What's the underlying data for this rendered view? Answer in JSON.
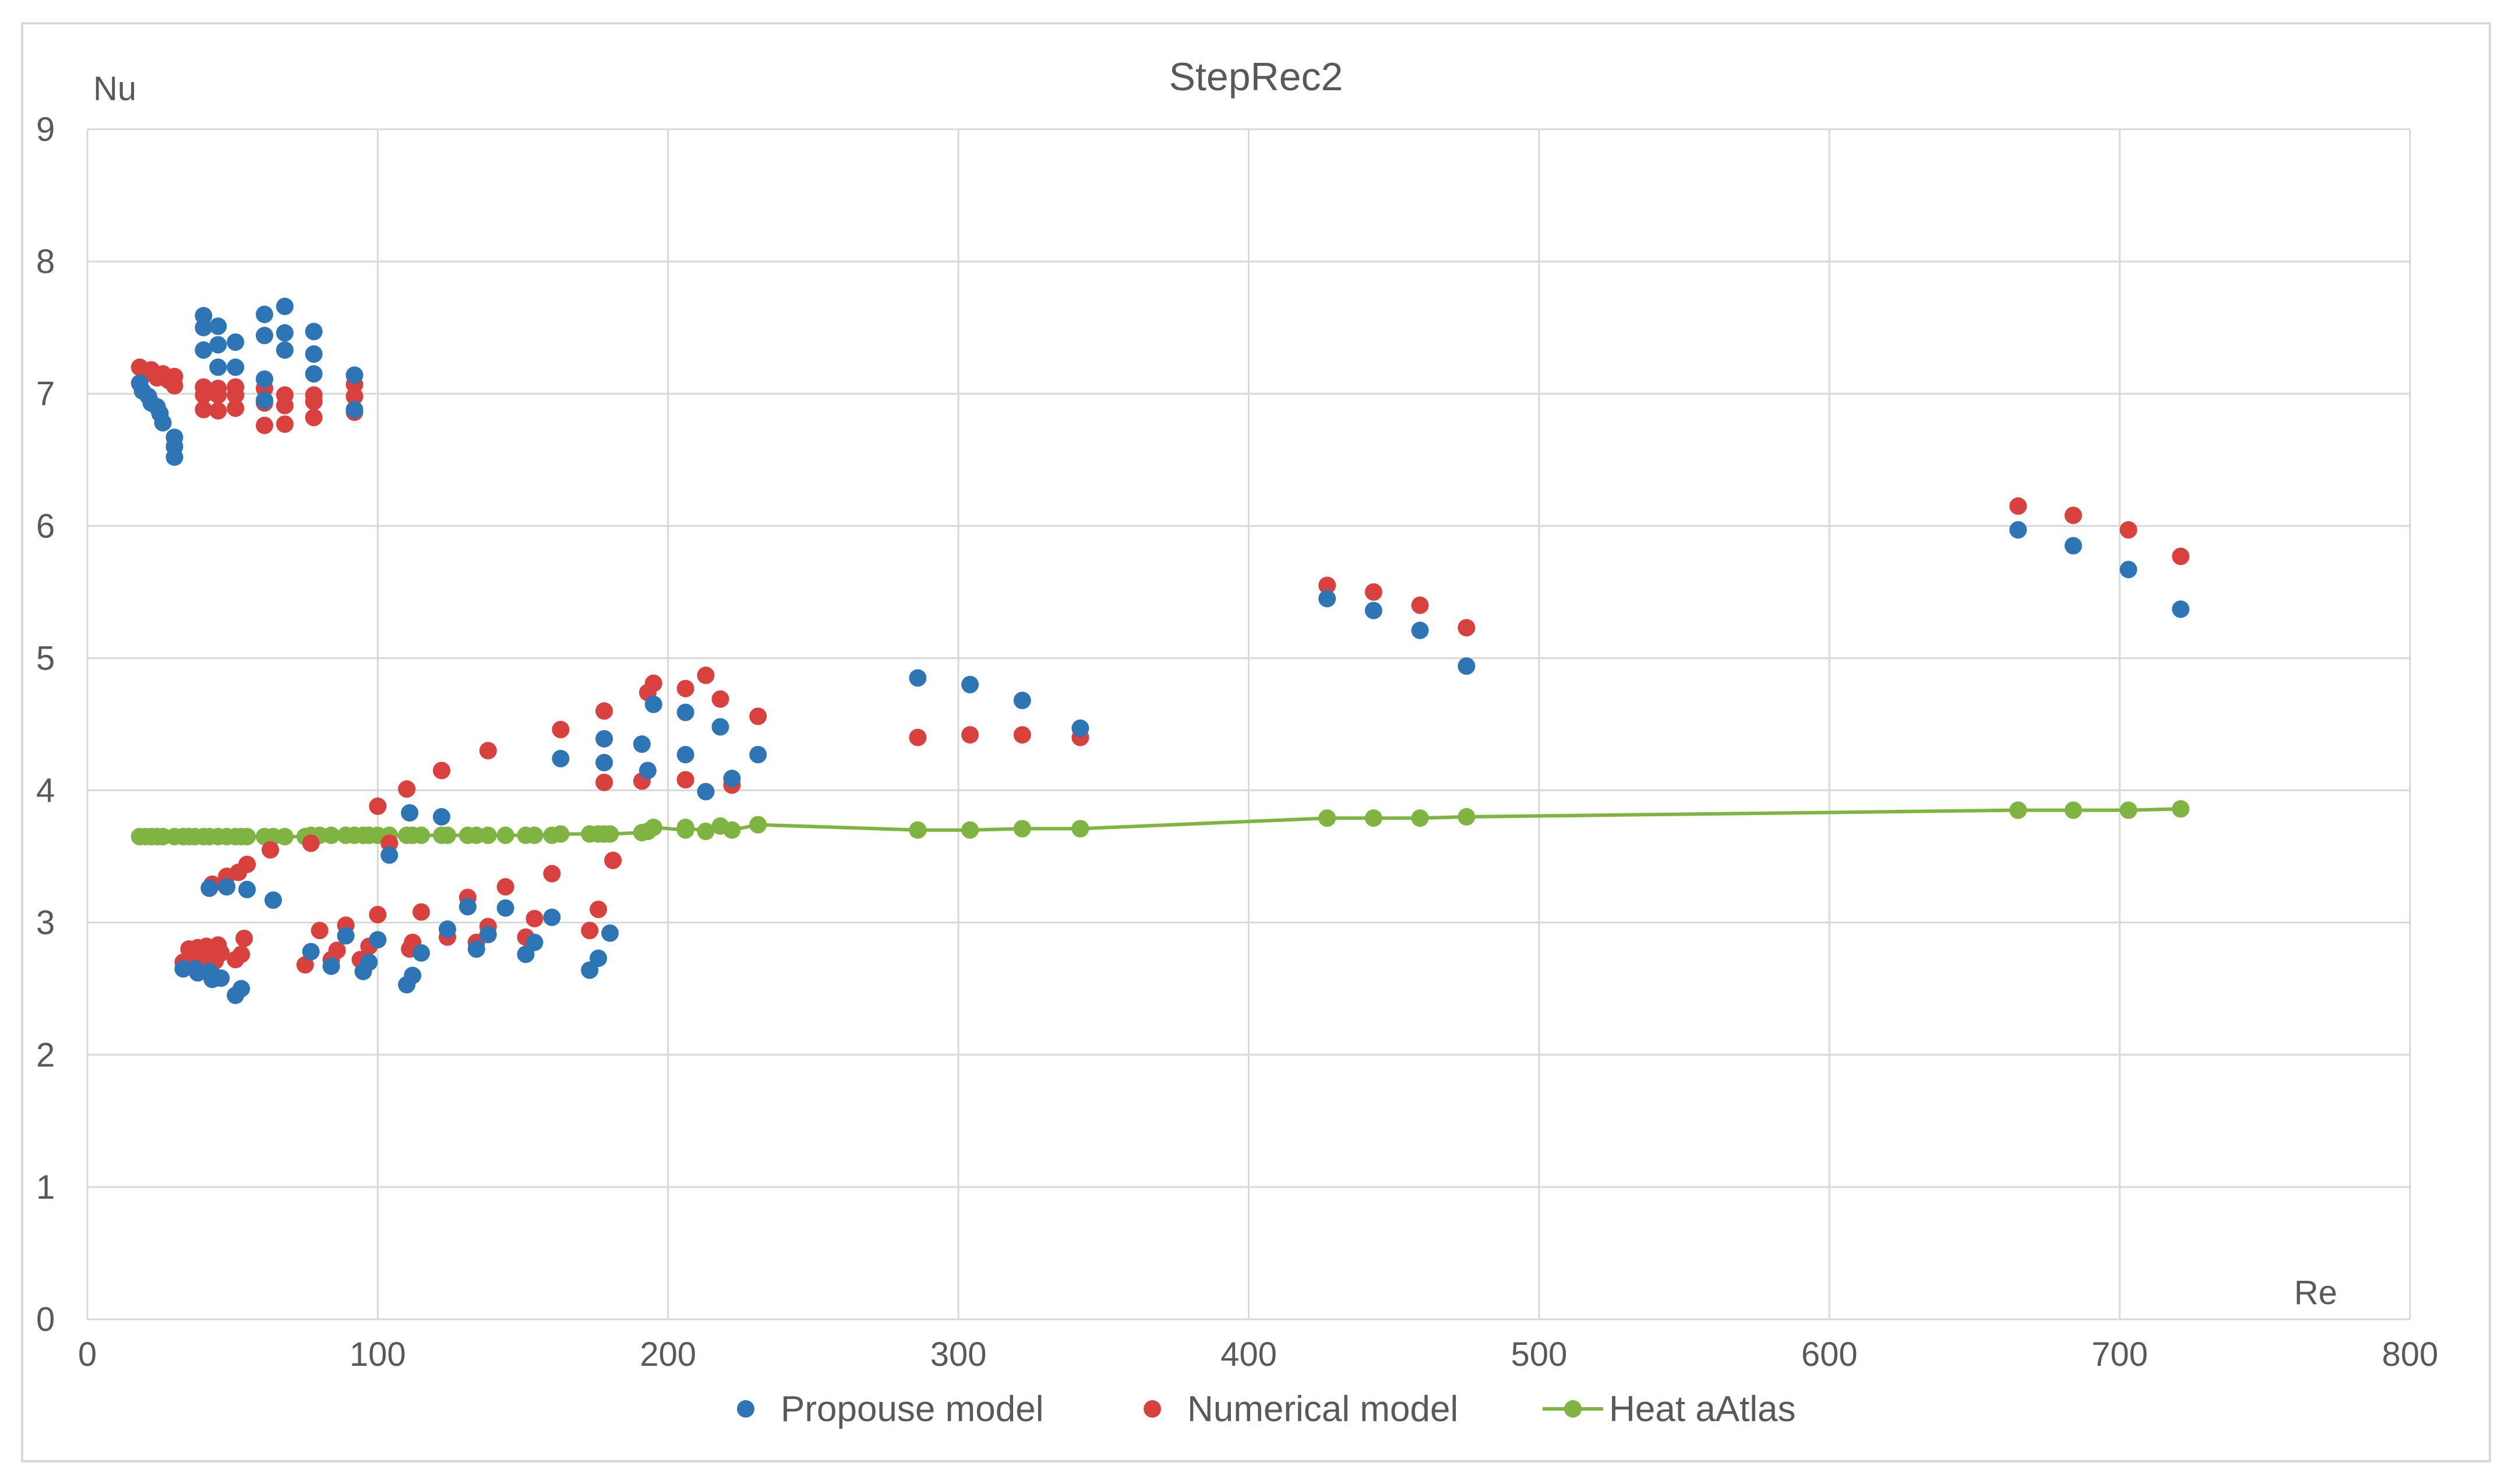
{
  "chart_data": {
    "type": "scatter",
    "title": "StepRec2",
    "xlabel": "Re",
    "ylabel": "Nu",
    "xlim": [
      0,
      800
    ],
    "ylim": [
      0,
      9
    ],
    "x_ticks": [
      0,
      100,
      200,
      300,
      400,
      500,
      600,
      700,
      800
    ],
    "y_ticks": [
      0,
      1,
      2,
      3,
      4,
      5,
      6,
      7,
      8,
      9
    ],
    "grid": true,
    "legend": "bottom",
    "colors": {
      "propouse": "#2e75b6",
      "numerical": "#d9413f",
      "heat": "#7fb342",
      "grid": "#d9d9d9",
      "border": "#d9d9d9"
    },
    "series": [
      {
        "name": "Propouse model",
        "kind": "markers",
        "points": [
          [
            18,
            7.08
          ],
          [
            19,
            7.02
          ],
          [
            21,
            6.98
          ],
          [
            22,
            6.93
          ],
          [
            24,
            6.9
          ],
          [
            25,
            6.85
          ],
          [
            26,
            6.78
          ],
          [
            30,
            6.67
          ],
          [
            30,
            6.6
          ],
          [
            30,
            6.52
          ],
          [
            40,
            7.59
          ],
          [
            40,
            7.5
          ],
          [
            40,
            7.33
          ],
          [
            45,
            7.51
          ],
          [
            45,
            7.37
          ],
          [
            45,
            7.2
          ],
          [
            51,
            7.39
          ],
          [
            51,
            7.2
          ],
          [
            61,
            7.6
          ],
          [
            61,
            7.44
          ],
          [
            61,
            7.11
          ],
          [
            61,
            6.95
          ],
          [
            68,
            7.66
          ],
          [
            68,
            7.46
          ],
          [
            68,
            7.33
          ],
          [
            78,
            7.47
          ],
          [
            78,
            7.3
          ],
          [
            78,
            7.15
          ],
          [
            92,
            7.14
          ],
          [
            92,
            6.88
          ],
          [
            33,
            2.65
          ],
          [
            37,
            2.65
          ],
          [
            38,
            2.62
          ],
          [
            42,
            2.63
          ],
          [
            43,
            2.57
          ],
          [
            44,
            2.59
          ],
          [
            46,
            2.58
          ],
          [
            51,
            2.45
          ],
          [
            53,
            2.5
          ],
          [
            42,
            3.26
          ],
          [
            48,
            3.27
          ],
          [
            55,
            3.25
          ],
          [
            64,
            3.17
          ],
          [
            77,
            2.78
          ],
          [
            84,
            2.67
          ],
          [
            89,
            2.9
          ],
          [
            95,
            2.63
          ],
          [
            97,
            2.7
          ],
          [
            100,
            2.87
          ],
          [
            104,
            3.51
          ],
          [
            110,
            2.53
          ],
          [
            111,
            3.83
          ],
          [
            112,
            2.6
          ],
          [
            115,
            2.77
          ],
          [
            122,
            3.8
          ],
          [
            124,
            2.95
          ],
          [
            131,
            3.12
          ],
          [
            134,
            2.8
          ],
          [
            138,
            2.91
          ],
          [
            144,
            3.11
          ],
          [
            151,
            2.76
          ],
          [
            154,
            2.85
          ],
          [
            160,
            3.04
          ],
          [
            173,
            2.64
          ],
          [
            176,
            2.73
          ],
          [
            180,
            2.92
          ],
          [
            163,
            4.24
          ],
          [
            178,
            4.39
          ],
          [
            178,
            4.21
          ],
          [
            191,
            4.35
          ],
          [
            193,
            4.15
          ],
          [
            195,
            4.65
          ],
          [
            206,
            4.59
          ],
          [
            206,
            4.27
          ],
          [
            213,
            3.99
          ],
          [
            218,
            4.48
          ],
          [
            222,
            4.09
          ],
          [
            231,
            4.27
          ],
          [
            286,
            4.85
          ],
          [
            304,
            4.8
          ],
          [
            322,
            4.68
          ],
          [
            342,
            4.47
          ],
          [
            427,
            5.45
          ],
          [
            443,
            5.36
          ],
          [
            459,
            5.21
          ],
          [
            475,
            4.94
          ],
          [
            665,
            5.97
          ],
          [
            684,
            5.85
          ],
          [
            703,
            5.67
          ],
          [
            721,
            5.37
          ]
        ]
      },
      {
        "name": "Numerical model",
        "kind": "markers",
        "points": [
          [
            18,
            7.2
          ],
          [
            20,
            7.15
          ],
          [
            22,
            7.18
          ],
          [
            24,
            7.12
          ],
          [
            26,
            7.15
          ],
          [
            28,
            7.1
          ],
          [
            30,
            7.13
          ],
          [
            30,
            7.06
          ],
          [
            40,
            7.05
          ],
          [
            40,
            6.99
          ],
          [
            40,
            6.88
          ],
          [
            45,
            7.04
          ],
          [
            45,
            6.99
          ],
          [
            45,
            6.87
          ],
          [
            51,
            7.05
          ],
          [
            51,
            6.99
          ],
          [
            51,
            6.89
          ],
          [
            61,
            7.04
          ],
          [
            61,
            6.93
          ],
          [
            61,
            6.76
          ],
          [
            68,
            6.99
          ],
          [
            68,
            6.91
          ],
          [
            68,
            6.77
          ],
          [
            78,
            6.99
          ],
          [
            78,
            6.94
          ],
          [
            78,
            6.82
          ],
          [
            92,
            7.07
          ],
          [
            92,
            6.98
          ],
          [
            92,
            6.86
          ],
          [
            33,
            2.7
          ],
          [
            35,
            2.73
          ],
          [
            35,
            2.8
          ],
          [
            37,
            2.74
          ],
          [
            38,
            2.81
          ],
          [
            40,
            2.72
          ],
          [
            41,
            2.82
          ],
          [
            43,
            3.29
          ],
          [
            44,
            2.71
          ],
          [
            45,
            2.83
          ],
          [
            46,
            2.77
          ],
          [
            48,
            3.35
          ],
          [
            51,
            2.72
          ],
          [
            52,
            3.38
          ],
          [
            53,
            2.76
          ],
          [
            54,
            2.88
          ],
          [
            55,
            3.44
          ],
          [
            63,
            3.55
          ],
          [
            75,
            2.68
          ],
          [
            77,
            3.6
          ],
          [
            80,
            2.94
          ],
          [
            84,
            2.72
          ],
          [
            86,
            2.79
          ],
          [
            89,
            2.98
          ],
          [
            94,
            2.72
          ],
          [
            97,
            2.82
          ],
          [
            100,
            3.06
          ],
          [
            100,
            3.88
          ],
          [
            104,
            3.6
          ],
          [
            111,
            2.8
          ],
          [
            112,
            2.85
          ],
          [
            115,
            3.08
          ],
          [
            122,
            4.15
          ],
          [
            110,
            4.01
          ],
          [
            124,
            2.89
          ],
          [
            131,
            3.19
          ],
          [
            134,
            2.85
          ],
          [
            138,
            2.97
          ],
          [
            138,
            4.3
          ],
          [
            144,
            3.27
          ],
          [
            151,
            2.89
          ],
          [
            154,
            3.03
          ],
          [
            160,
            3.37
          ],
          [
            163,
            4.46
          ],
          [
            173,
            2.94
          ],
          [
            176,
            3.1
          ],
          [
            178,
            4.6
          ],
          [
            178,
            4.06
          ],
          [
            181,
            3.47
          ],
          [
            191,
            4.07
          ],
          [
            193,
            4.74
          ],
          [
            195,
            4.81
          ],
          [
            206,
            4.77
          ],
          [
            206,
            4.08
          ],
          [
            213,
            4.87
          ],
          [
            218,
            4.69
          ],
          [
            222,
            4.04
          ],
          [
            231,
            4.56
          ],
          [
            286,
            4.4
          ],
          [
            304,
            4.42
          ],
          [
            322,
            4.42
          ],
          [
            342,
            4.4
          ],
          [
            427,
            5.55
          ],
          [
            443,
            5.5
          ],
          [
            459,
            5.4
          ],
          [
            475,
            5.23
          ],
          [
            665,
            6.15
          ],
          [
            684,
            6.08
          ],
          [
            703,
            5.97
          ],
          [
            721,
            5.77
          ]
        ]
      },
      {
        "name": "Heat aAtlas",
        "kind": "line-markers",
        "points": [
          [
            18,
            3.65
          ],
          [
            20,
            3.65
          ],
          [
            22,
            3.65
          ],
          [
            24,
            3.65
          ],
          [
            26,
            3.65
          ],
          [
            30,
            3.65
          ],
          [
            33,
            3.65
          ],
          [
            35,
            3.65
          ],
          [
            37,
            3.65
          ],
          [
            40,
            3.65
          ],
          [
            42,
            3.65
          ],
          [
            45,
            3.65
          ],
          [
            48,
            3.65
          ],
          [
            51,
            3.65
          ],
          [
            53,
            3.65
          ],
          [
            55,
            3.65
          ],
          [
            61,
            3.65
          ],
          [
            64,
            3.65
          ],
          [
            68,
            3.65
          ],
          [
            75,
            3.65
          ],
          [
            77,
            3.66
          ],
          [
            80,
            3.66
          ],
          [
            84,
            3.66
          ],
          [
            89,
            3.66
          ],
          [
            92,
            3.66
          ],
          [
            95,
            3.66
          ],
          [
            97,
            3.66
          ],
          [
            100,
            3.66
          ],
          [
            104,
            3.66
          ],
          [
            110,
            3.66
          ],
          [
            112,
            3.66
          ],
          [
            115,
            3.66
          ],
          [
            122,
            3.66
          ],
          [
            124,
            3.66
          ],
          [
            131,
            3.66
          ],
          [
            134,
            3.66
          ],
          [
            138,
            3.66
          ],
          [
            144,
            3.66
          ],
          [
            151,
            3.66
          ],
          [
            154,
            3.66
          ],
          [
            160,
            3.66
          ],
          [
            163,
            3.67
          ],
          [
            173,
            3.67
          ],
          [
            176,
            3.67
          ],
          [
            178,
            3.67
          ],
          [
            180,
            3.67
          ],
          [
            191,
            3.68
          ],
          [
            193,
            3.69
          ],
          [
            195,
            3.72
          ],
          [
            206,
            3.7
          ],
          [
            206,
            3.72
          ],
          [
            213,
            3.69
          ],
          [
            218,
            3.73
          ],
          [
            222,
            3.7
          ],
          [
            231,
            3.74
          ],
          [
            286,
            3.7
          ],
          [
            304,
            3.7
          ],
          [
            322,
            3.71
          ],
          [
            342,
            3.71
          ],
          [
            427,
            3.79
          ],
          [
            443,
            3.79
          ],
          [
            459,
            3.79
          ],
          [
            475,
            3.8
          ],
          [
            665,
            3.85
          ],
          [
            684,
            3.85
          ],
          [
            703,
            3.85
          ],
          [
            721,
            3.86
          ]
        ]
      }
    ]
  }
}
